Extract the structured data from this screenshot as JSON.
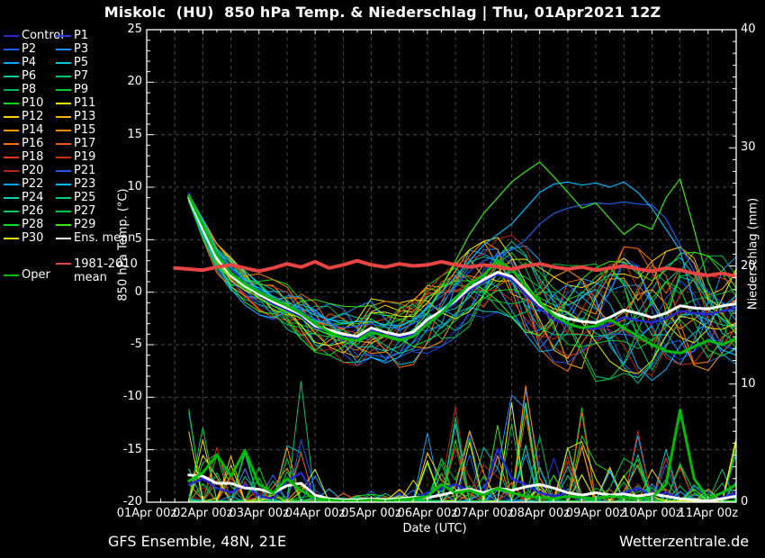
{
  "title": "Miskolc  (HU)  850 hPa Temp. & Niederschlag | Thu, 01Apr2021 12Z",
  "footer": {
    "left": "GFS Ensemble, 48N, 21E",
    "right": "Wetterzentrale.de"
  },
  "colors": {
    "background": "#000000",
    "text": "#ffffff",
    "grid": "#4c4c44",
    "frame": "#ffffff",
    "ens_mean": "#ffffff",
    "climate_mean": "#e84444",
    "oper": "#00bb00",
    "control": "#2828cc"
  },
  "legend": {
    "entries": [
      {
        "label": "Control",
        "color": "#2828cc"
      },
      {
        "label": "P1",
        "color": "#2040e0"
      },
      {
        "label": "P2",
        "color": "#2060f0"
      },
      {
        "label": "P3",
        "color": "#1e90ff"
      },
      {
        "label": "P4",
        "color": "#00a8ff"
      },
      {
        "label": "P5",
        "color": "#00c8d0"
      },
      {
        "label": "P6",
        "color": "#00c8a0"
      },
      {
        "label": "P7",
        "color": "#00c878"
      },
      {
        "label": "P8",
        "color": "#00b450"
      },
      {
        "label": "P9",
        "color": "#00c838"
      },
      {
        "label": "P10",
        "color": "#10d810"
      },
      {
        "label": "P11",
        "color": "#f0f000"
      },
      {
        "label": "P12",
        "color": "#ffd200"
      },
      {
        "label": "P13",
        "color": "#ffb400"
      },
      {
        "label": "P14",
        "color": "#ff9800"
      },
      {
        "label": "P15",
        "color": "#ff8800"
      },
      {
        "label": "P16",
        "color": "#ff7000"
      },
      {
        "label": "P17",
        "color": "#e85c00"
      },
      {
        "label": "P18",
        "color": "#e03818"
      },
      {
        "label": "P19",
        "color": "#cc3010"
      },
      {
        "label": "P20",
        "color": "#b02818"
      },
      {
        "label": "P21",
        "color": "#2255ee"
      },
      {
        "label": "P22",
        "color": "#00a0ff"
      },
      {
        "label": "P23",
        "color": "#00b8ff"
      },
      {
        "label": "P24",
        "color": "#00d2b0"
      },
      {
        "label": "P25",
        "color": "#00cc88"
      },
      {
        "label": "P26",
        "color": "#00c858"
      },
      {
        "label": "P27",
        "color": "#00c838"
      },
      {
        "label": "P28",
        "color": "#00dc20"
      },
      {
        "label": "P29",
        "color": "#38e810"
      },
      {
        "label": "P30",
        "color": "#e8e800"
      },
      {
        "label": "Ens. mean",
        "color": "#ffffff"
      }
    ],
    "climate": {
      "line1": "1981-2010",
      "line2": "mean",
      "color": "#e84444"
    },
    "oper": {
      "label": "Oper",
      "color": "#00bb00"
    }
  },
  "chart_data": {
    "type": "line",
    "title": "Miskolc  (HU)  850 hPa Temp. & Niederschlag | Thu, 01Apr2021 12Z",
    "x": {
      "label": "Date (UTC)",
      "tick_labels": [
        "01Apr 00z",
        "02Apr 00z",
        "03Apr 00z",
        "04Apr 00z",
        "05Apr 00z",
        "06Apr 00z",
        "07Apr 00z",
        "08Apr 00z",
        "09Apr 00z",
        "10Apr 00z",
        "11Apr 00z"
      ],
      "domain_days": [
        0,
        10.5
      ],
      "minor_grid_hours": 12
    },
    "y_left": {
      "label": "850 hPa Temp. (°C)",
      "min": -20,
      "max": 25,
      "major_ticks": [
        25,
        20,
        15,
        10,
        5,
        0,
        -5,
        -10,
        -15,
        -20
      ],
      "grid": "dashed"
    },
    "y_right": {
      "label": "Niederschlag (mm)",
      "min": 0,
      "max": 40,
      "major_ticks": [
        0,
        10,
        20,
        30,
        40
      ]
    },
    "time": {
      "start_day": 0.75,
      "step_day": 0.25,
      "points": 40
    },
    "ens_mean_temp": [
      9.0,
      6.0,
      3.2,
      1.6,
      0.6,
      -0.2,
      -0.9,
      -1.5,
      -2.1,
      -3.2,
      -3.6,
      -4.0,
      -4.2,
      -3.4,
      -3.8,
      -4.1,
      -3.8,
      -2.6,
      -1.8,
      -0.8,
      0.4,
      1.2,
      1.9,
      1.5,
      0.2,
      -1.2,
      -2.0,
      -2.5,
      -2.8,
      -2.9,
      -2.4,
      -1.7,
      -2.0,
      -2.4,
      -2.0,
      -1.3,
      -1.5,
      -1.6,
      -1.3,
      -1.1
    ],
    "ens_mean_precip": [
      2.3,
      2.2,
      1.6,
      1.6,
      1.2,
      1.1,
      0.8,
      1.4,
      1.6,
      0.6,
      0.3,
      0.2,
      0.2,
      0.3,
      0.2,
      0.3,
      0.4,
      0.4,
      0.6,
      0.9,
      1.1,
      0.8,
      1.2,
      1.0,
      1.3,
      1.5,
      1.2,
      0.8,
      0.6,
      0.8,
      0.6,
      0.7,
      0.5,
      0.7,
      0.5,
      0.3,
      0.2,
      0.1,
      0.3,
      0.5
    ],
    "control_temp": [
      9.4,
      6.2,
      3.4,
      1.9,
      0.7,
      -0.3,
      -1.1,
      -1.7,
      -2.3,
      -3.4,
      -3.7,
      -4.1,
      -4.4,
      -3.6,
      -3.9,
      -4.3,
      -4.0,
      -2.8,
      -2.0,
      -1.0,
      0.2,
      1.0,
      1.7,
      1.2,
      -0.2,
      -1.6,
      -2.6,
      -3.1,
      -3.4,
      -3.5,
      -3.0,
      -2.4,
      -2.7,
      -2.9,
      -2.5,
      -1.8,
      -2.0,
      -2.1,
      -1.8,
      -1.5
    ],
    "control_precip": [
      1.5,
      2.0,
      1.2,
      0.8,
      1.5,
      0.5,
      0.3,
      1.8,
      2.5,
      0.5,
      0.2,
      0.1,
      0.1,
      0.2,
      0.1,
      0.2,
      0.3,
      0.8,
      1.2,
      1.5,
      1.0,
      0.8,
      4.5,
      2.0,
      1.5,
      0.8,
      0.5,
      0.8,
      0.5,
      0.3,
      0.5,
      0.8,
      1.2,
      0.5,
      0.8,
      0.3,
      0.2,
      0.1,
      0.4,
      0.8
    ],
    "oper_temp": [
      9.2,
      6.4,
      3.6,
      1.8,
      0.8,
      0.0,
      -0.7,
      -1.3,
      -2.0,
      -3.0,
      -3.8,
      -4.4,
      -4.6,
      -3.8,
      -4.2,
      -4.6,
      -4.2,
      -3.0,
      -2.0,
      -0.6,
      0.8,
      1.6,
      3.0,
      2.2,
      0.6,
      -1.0,
      -2.2,
      -3.0,
      -3.4,
      -3.2,
      -2.6,
      -3.4,
      -4.2,
      -5.0,
      -5.6,
      -5.8,
      -5.2,
      -4.6,
      -5.0,
      -4.4
    ],
    "oper_precip": [
      1.8,
      2.5,
      4.0,
      2.2,
      4.4,
      1.5,
      0.8,
      2.0,
      1.0,
      0.3,
      0.2,
      0.1,
      0.1,
      0.2,
      0.1,
      0.2,
      0.3,
      0.5,
      1.5,
      0.8,
      1.0,
      0.6,
      1.2,
      0.8,
      0.5,
      0.4,
      0.3,
      0.5,
      0.4,
      0.3,
      0.5,
      0.4,
      0.3,
      0.4,
      1.5,
      7.8,
      2.0,
      0.3,
      0.8,
      1.5
    ],
    "climate_mean_temp": {
      "start_day": 0.5,
      "step_day": 0.25,
      "values": [
        2.3,
        2.2,
        2.1,
        2.4,
        2.6,
        2.3,
        2.0,
        2.3,
        2.7,
        2.4,
        2.9,
        2.3,
        2.6,
        3.0,
        2.6,
        2.4,
        2.7,
        2.5,
        2.6,
        2.9,
        2.6,
        2.4,
        2.6,
        2.4,
        2.2,
        2.5,
        2.7,
        2.4,
        2.2,
        2.4,
        2.1,
        2.3,
        2.5,
        2.2,
        2.0,
        2.3,
        2.1,
        1.8,
        1.6,
        1.8,
        1.5
      ]
    },
    "member_spread_halfwidth": [
      0.3,
      0.7,
      1.0,
      1.2,
      1.3,
      1.4,
      1.5,
      1.6,
      1.7,
      1.8,
      1.8,
      1.9,
      2.0,
      2.0,
      2.1,
      2.2,
      2.2,
      2.3,
      2.4,
      2.5,
      2.6,
      2.6,
      2.7,
      2.8,
      3.0,
      3.2,
      3.4,
      3.6,
      3.8,
      4.0,
      4.2,
      4.3,
      4.4,
      4.3,
      4.2,
      4.0,
      3.8,
      3.6,
      3.4,
      3.2
    ],
    "member_precip_max": [
      8.2,
      6.8,
      5.0,
      4.2,
      4.6,
      3.2,
      2.5,
      5.0,
      11.0,
      3.0,
      1.2,
      0.8,
      0.6,
      1.0,
      0.8,
      1.2,
      2.0,
      6.3,
      4.0,
      8.7,
      6.5,
      5.0,
      7.0,
      9.1,
      10.6,
      6.0,
      4.0,
      5.0,
      8.1,
      3.5,
      3.0,
      4.0,
      6.5,
      3.0,
      4.8,
      3.5,
      1.5,
      1.2,
      3.0,
      5.5
    ],
    "outlier_members": [
      {
        "name": "warm-outlier-blue",
        "color": "#2060f0",
        "temp": [
          9.2,
          6.6,
          3.8,
          2.2,
          1.0,
          0.2,
          -0.6,
          -1.2,
          -1.8,
          -2.6,
          -3.0,
          -3.4,
          -3.2,
          -3.0,
          -3.3,
          -3.5,
          -3.0,
          -2.0,
          -1.0,
          0.5,
          2.0,
          3.0,
          3.5,
          4.0,
          5.0,
          6.5,
          7.5,
          8.0,
          8.3,
          8.5,
          8.4,
          8.6,
          8.4,
          8.3,
          7.0,
          4.5,
          2.0,
          0.0,
          -1.0,
          -1.5
        ]
      },
      {
        "name": "warm-outlier-cyan",
        "color": "#00b8ff",
        "temp": [
          9.4,
          6.8,
          4.0,
          2.4,
          1.2,
          0.4,
          -0.4,
          -1.0,
          -1.5,
          -2.2,
          -2.6,
          -3.0,
          -2.8,
          -2.8,
          -3.1,
          -3.2,
          -2.6,
          -1.5,
          0.0,
          1.5,
          3.0,
          4.5,
          5.5,
          6.5,
          8.0,
          9.5,
          10.3,
          10.5,
          10.2,
          10.4,
          10.0,
          10.5,
          9.5,
          8.0,
          6.0,
          4.0,
          -1.0,
          -4.0,
          -5.5,
          -6.0
        ]
      },
      {
        "name": "warm-outlier-green",
        "color": "#38e810",
        "temp": [
          9.0,
          5.8,
          3.0,
          1.4,
          0.4,
          -0.6,
          -1.3,
          -1.9,
          -2.5,
          -3.5,
          -4.0,
          -4.4,
          -4.5,
          -3.8,
          -4.2,
          -4.4,
          -3.6,
          -2.0,
          0.5,
          3.0,
          5.5,
          7.5,
          9.0,
          10.5,
          11.5,
          12.4,
          11.0,
          9.5,
          8.0,
          8.5,
          7.0,
          5.5,
          6.5,
          6.0,
          9.0,
          10.8,
          6.0,
          1.0,
          -2.0,
          -4.0
        ]
      }
    ],
    "members": 30
  }
}
